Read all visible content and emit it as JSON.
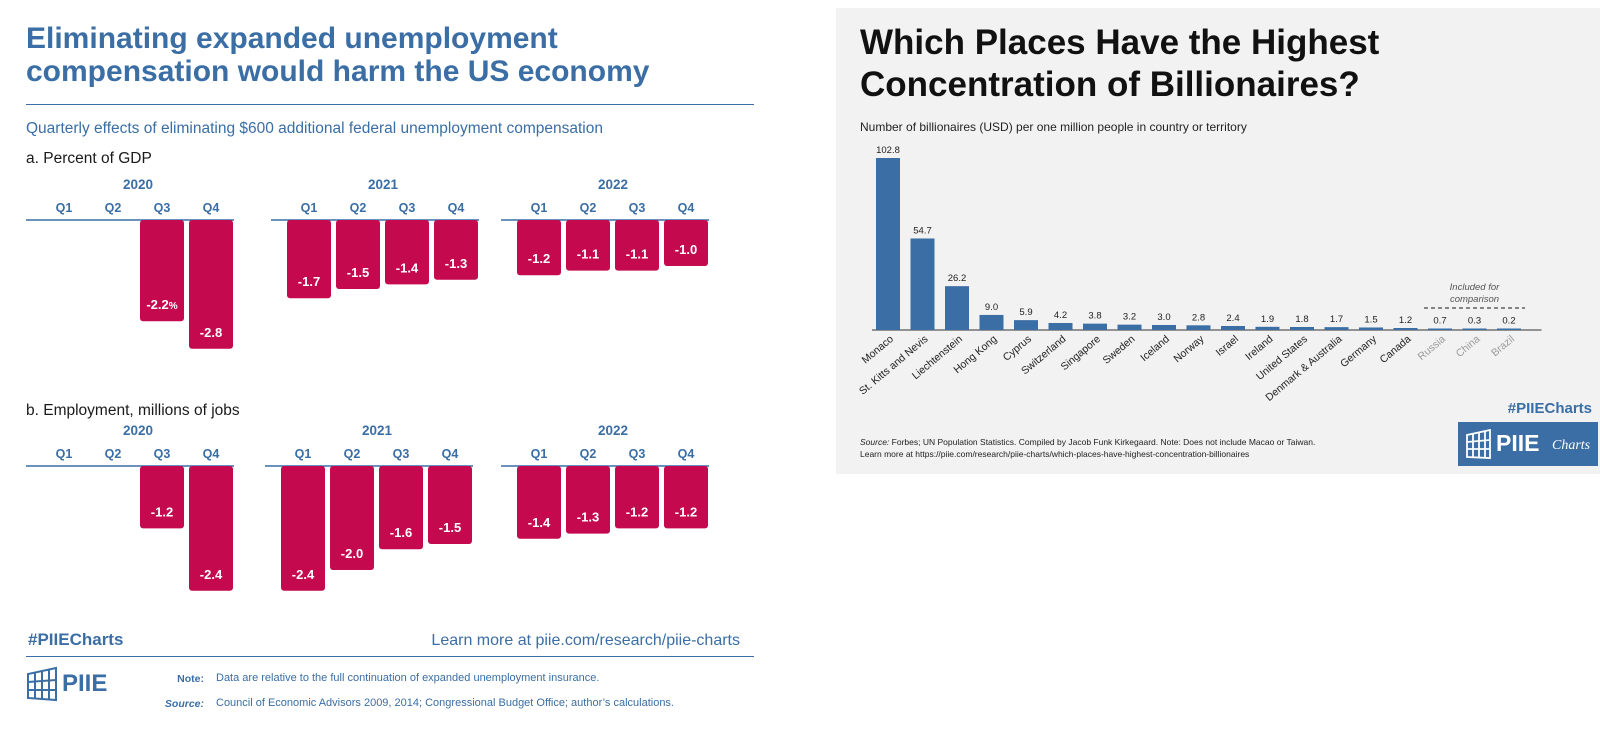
{
  "left": {
    "title": "Eliminating expanded unemployment compensation would harm the US economy",
    "subtitle": "Quarterly effects of eliminating $600 additional federal unemployment compensation",
    "hashtag": "#PIIECharts",
    "learn_more": "Learn more at piie.com/research/piie-charts",
    "logo_text": "PIIE",
    "note_label": "Note:",
    "note_text": "Data are relative to the full continuation of expanded unemployment insurance.",
    "source_label": "Source:",
    "source_text": "Council of Economic Advisors 2009, 2014; Congressional Budget Office; author’s calculations.",
    "colors": {
      "accent": "#3a6ea5",
      "bar": "#c4094f"
    }
  },
  "right": {
    "title": "Which Places Have the Highest Concentration of Billionaires?",
    "subtitle": "Number of billionaires (USD) per one million people in country or territory",
    "comparison_note": [
      "Included for",
      "comparison"
    ],
    "hashtag": "#PIIECharts",
    "logo_text": "PIIE",
    "logo_charts": "Charts",
    "source_label": "Source:",
    "source_text": "Forbes; UN Population Statistics. Compiled by Jacob Funk Kirkegaard. Note: Does not include Macao or Taiwan.",
    "learn_more": "Learn more at https://piie.com/research/piie-charts/which-places-have-highest-concentration-billionaires",
    "colors": {
      "bar": "#3a6ea5",
      "comparison_label": "#9a9a9a"
    }
  },
  "chart_data": [
    {
      "type": "bar",
      "title": "a. Percent of GDP",
      "years": [
        "2020",
        "2021",
        "2022"
      ],
      "quarters": [
        "Q1",
        "Q2",
        "Q3",
        "Q4"
      ],
      "value_suffix_first": "%",
      "groups": [
        {
          "year": "2020",
          "values": [
            null,
            null,
            -2.2,
            -2.8
          ]
        },
        {
          "year": "2021",
          "values": [
            -1.7,
            -1.5,
            -1.4,
            -1.3
          ]
        },
        {
          "year": "2022",
          "values": [
            -1.2,
            -1.1,
            -1.1,
            -1.0
          ]
        }
      ]
    },
    {
      "type": "bar",
      "title": "b. Employment, millions of jobs",
      "years": [
        "2020",
        "2021",
        "2022"
      ],
      "quarters": [
        "Q1",
        "Q2",
        "Q3",
        "Q4"
      ],
      "groups": [
        {
          "year": "2020",
          "values": [
            null,
            null,
            -1.2,
            -2.4
          ]
        },
        {
          "year": "2021",
          "values": [
            -2.4,
            -2.0,
            -1.6,
            -1.5
          ]
        },
        {
          "year": "2022",
          "values": [
            -1.4,
            -1.3,
            -1.2,
            -1.2
          ]
        }
      ]
    },
    {
      "type": "bar",
      "title": "Which Places Have the Highest Concentration of Billionaires?",
      "ylabel": "Number of billionaires (USD) per one million people in country or territory",
      "categories": [
        "Monaco",
        "St. Kitts and Nevis",
        "Liechtenstein",
        "Hong Kong",
        "Cyprus",
        "Switzerland",
        "Singapore",
        "Sweden",
        "Iceland",
        "Norway",
        "Israel",
        "Ireland",
        "United States",
        "Denmark & Australia",
        "Germany",
        "Canada",
        "Russia",
        "China",
        "Brazil"
      ],
      "values": [
        102.8,
        54.7,
        26.2,
        9.0,
        5.9,
        4.2,
        3.8,
        3.2,
        3.0,
        2.8,
        2.4,
        1.9,
        1.8,
        1.7,
        1.5,
        1.2,
        0.7,
        0.3,
        0.2
      ],
      "value_labels": [
        "102.8",
        "54.7",
        "26.2",
        "9.0",
        "5.9",
        "4.2",
        "3.8",
        "3.2",
        "3.0",
        "2.8",
        "2.4",
        "1.9",
        "1.8",
        "1.7",
        "1.5",
        "1.2",
        "0.7",
        "0.3",
        "0.2"
      ],
      "comparison_categories": [
        "Russia",
        "China",
        "Brazil"
      ]
    }
  ]
}
